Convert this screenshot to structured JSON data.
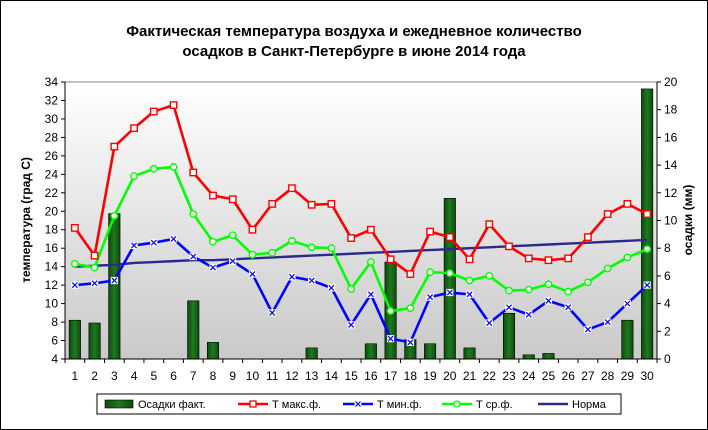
{
  "chart_data": {
    "type": "bar+line",
    "title_line1": "Фактическая температура воздуха и ежедневное количество",
    "title_line2": "осадков в Санкт-Петербурге в июне 2014 года",
    "ylabel_left": "температура (град С)",
    "ylabel_right": "осадки (мм)",
    "ylim_left": [
      4,
      34
    ],
    "ylim_right": [
      0,
      20
    ],
    "yticks_left": [
      4,
      6,
      8,
      10,
      12,
      14,
      16,
      18,
      20,
      22,
      24,
      26,
      28,
      30,
      32,
      34
    ],
    "yticks_right": [
      0,
      2,
      4,
      6,
      8,
      10,
      12,
      14,
      16,
      18,
      20
    ],
    "categories": [
      "1",
      "2",
      "3",
      "4",
      "5",
      "6",
      "7",
      "8",
      "9",
      "10",
      "11",
      "12",
      "13",
      "14",
      "15",
      "16",
      "17",
      "18",
      "19",
      "20",
      "21",
      "22",
      "23",
      "24",
      "25",
      "26",
      "27",
      "28",
      "29",
      "30"
    ],
    "legend": [
      "Осадки факт.",
      "Т макс.ф.",
      "Т мин.ф.",
      "Т ср.ф.",
      "Норма"
    ],
    "legend_position": "bottom",
    "grid": false,
    "colors": {
      "precip": "#1e7a1e",
      "tmax": "#ff0000",
      "tmin": "#0000ff",
      "tavg": "#00ff00",
      "norm": "#2a2a8c"
    },
    "precip": [
      2.8,
      2.6,
      10.5,
      0,
      0,
      0,
      4.2,
      1.2,
      0,
      0,
      0,
      0,
      0.8,
      0,
      0,
      1.1,
      7.0,
      1.4,
      1.1,
      11.6,
      0.8,
      0,
      3.3,
      0.3,
      0.4,
      0,
      0,
      0,
      2.8,
      19.5
    ],
    "tmax": [
      18.2,
      15.2,
      27.0,
      29.0,
      30.8,
      31.5,
      24.2,
      21.7,
      21.3,
      18.0,
      20.8,
      22.5,
      20.7,
      20.8,
      17.1,
      18.0,
      14.8,
      13.2,
      17.8,
      17.2,
      14.8,
      18.6,
      16.2,
      14.9,
      14.7,
      14.9,
      17.2,
      19.7,
      20.8,
      19.7
    ],
    "tmin": [
      12.0,
      12.2,
      12.5,
      16.3,
      16.6,
      17.0,
      15.1,
      13.9,
      14.6,
      13.2,
      9.0,
      12.9,
      12.5,
      11.7,
      7.7,
      11.0,
      6.2,
      5.8,
      10.7,
      11.2,
      11.0,
      7.9,
      9.6,
      8.8,
      10.3,
      9.6,
      7.2,
      8.0,
      10.0,
      12.0
    ],
    "tavg": [
      14.3,
      13.9,
      19.5,
      23.8,
      24.6,
      24.8,
      19.7,
      16.7,
      17.4,
      15.3,
      15.5,
      16.8,
      16.1,
      16.0,
      11.6,
      14.5,
      9.2,
      9.5,
      13.4,
      13.3,
      12.5,
      13.0,
      11.4,
      11.5,
      12.1,
      11.3,
      12.3,
      13.8,
      15.0,
      15.9
    ],
    "norm": [
      14.0,
      14.1,
      14.2,
      14.4,
      14.5,
      14.6,
      14.7,
      14.7,
      14.8,
      14.9,
      15.0,
      15.1,
      15.2,
      15.3,
      15.4,
      15.5,
      15.6,
      15.7,
      15.8,
      15.9,
      16.0,
      16.1,
      16.2,
      16.3,
      16.4,
      16.5,
      16.6,
      16.7,
      16.8,
      16.9
    ]
  }
}
